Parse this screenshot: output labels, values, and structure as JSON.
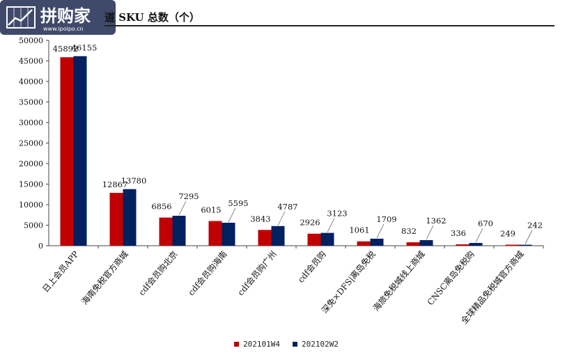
{
  "logo": {
    "text": "拼购家",
    "url": "www.ipoipo.cn"
  },
  "title": "道 SKU 总数（个）",
  "colors": {
    "s1": "#C00000",
    "s2": "#002060",
    "grid": "#888888"
  },
  "chart_data": {
    "type": "bar",
    "categories": [
      "日上会员APP",
      "海南免税官方商城",
      "cdf会员购北京",
      "cdf会员购海南",
      "cdf会员购广州",
      "cdf会员购",
      "深免×DFS|离岛免税",
      "海旅免税城线上商城",
      "CNSC离岛免税购",
      "全球精品免税城官方商城"
    ],
    "series": [
      {
        "name": "202101W4",
        "values": [
          45892,
          12867,
          6856,
          6015,
          3843,
          2926,
          1061,
          832,
          336,
          249
        ]
      },
      {
        "name": "202102W2",
        "values": [
          46155,
          13780,
          7295,
          5595,
          4787,
          3123,
          1709,
          1362,
          670,
          242
        ]
      }
    ],
    "yticks": [
      "0",
      "5000",
      "10000",
      "15000",
      "20000",
      "25000",
      "30000",
      "35000",
      "40000",
      "45000",
      "50000"
    ],
    "ylim": [
      0,
      50000
    ],
    "legend_position": "bottom"
  }
}
